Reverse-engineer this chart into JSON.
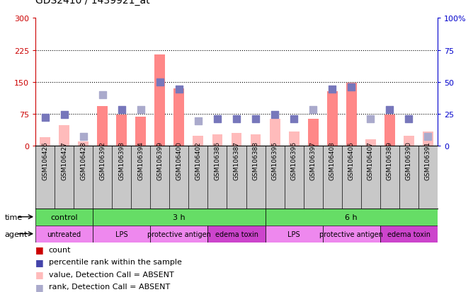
{
  "title": "GDS2410 / 1439921_at",
  "samples": [
    "GSM106426",
    "GSM106427",
    "GSM106428",
    "GSM106392",
    "GSM106393",
    "GSM106394",
    "GSM106399",
    "GSM106400",
    "GSM106402",
    "GSM106386",
    "GSM106387",
    "GSM106388",
    "GSM106395",
    "GSM106396",
    "GSM106397",
    "GSM106403",
    "GSM106405",
    "GSM106407",
    "GSM106389",
    "GSM106390",
    "GSM106391"
  ],
  "counts": [
    20,
    48,
    10,
    92,
    72,
    68,
    215,
    135,
    22,
    26,
    30,
    26,
    62,
    32,
    62,
    128,
    148,
    15,
    72,
    22,
    32
  ],
  "ranks": [
    22,
    24,
    7,
    40,
    28,
    28,
    50,
    44,
    19,
    21,
    21,
    21,
    24,
    21,
    28,
    44,
    46,
    21,
    28,
    21,
    7
  ],
  "count_absent": [
    true,
    true,
    true,
    false,
    false,
    false,
    false,
    false,
    true,
    true,
    true,
    true,
    true,
    true,
    false,
    false,
    false,
    true,
    false,
    true,
    true
  ],
  "rank_absent": [
    false,
    false,
    true,
    true,
    false,
    true,
    false,
    false,
    true,
    false,
    false,
    false,
    false,
    false,
    true,
    false,
    false,
    true,
    false,
    false,
    true
  ],
  "time_groups": [
    {
      "label": "control",
      "start": 0,
      "end": 3,
      "color": "#66DD66"
    },
    {
      "label": "3 h",
      "start": 3,
      "end": 12,
      "color": "#66DD66"
    },
    {
      "label": "6 h",
      "start": 12,
      "end": 21,
      "color": "#66DD66"
    }
  ],
  "agent_groups": [
    {
      "label": "untreated",
      "start": 0,
      "end": 3,
      "facecolor": "#EE88EE"
    },
    {
      "label": "LPS",
      "start": 3,
      "end": 6,
      "facecolor": "#EE88EE"
    },
    {
      "label": "protective antigen",
      "start": 6,
      "end": 9,
      "facecolor": "#EE88EE"
    },
    {
      "label": "edema toxin",
      "start": 9,
      "end": 12,
      "facecolor": "#CC44CC"
    },
    {
      "label": "LPS",
      "start": 12,
      "end": 15,
      "facecolor": "#EE88EE"
    },
    {
      "label": "protective antigen",
      "start": 15,
      "end": 18,
      "facecolor": "#EE88EE"
    },
    {
      "label": "edema toxin",
      "start": 18,
      "end": 21,
      "facecolor": "#CC44CC"
    }
  ],
  "ylim_left": [
    0,
    300
  ],
  "ylim_right": [
    0,
    100
  ],
  "yticks_left": [
    0,
    75,
    150,
    225,
    300
  ],
  "yticks_right": [
    0,
    25,
    50,
    75,
    100
  ],
  "bar_color_present": "#FF8888",
  "bar_color_absent": "#FFBBBB",
  "rank_color_present": "#7777BB",
  "rank_color_absent": "#AAAACC",
  "bar_width": 0.55,
  "rank_marker_size": 45,
  "sample_bg": "#C8C8C8",
  "left_axis_color": "#CC0000",
  "right_axis_color": "#0000CC",
  "legend_items": [
    {
      "color": "#CC0000",
      "label": "count"
    },
    {
      "color": "#4444AA",
      "label": "percentile rank within the sample"
    },
    {
      "color": "#FFBBBB",
      "label": "value, Detection Call = ABSENT"
    },
    {
      "color": "#AAAACC",
      "label": "rank, Detection Call = ABSENT"
    }
  ]
}
